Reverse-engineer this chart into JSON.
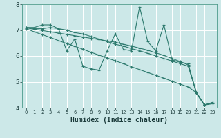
{
  "xlabel": "Humidex (Indice chaleur)",
  "bg_color": "#cce8e8",
  "grid_color": "#ffffff",
  "line_color": "#2d7a6e",
  "xlim": [
    -0.5,
    23.5
  ],
  "ylim": [
    4,
    8
  ],
  "xticks": [
    0,
    1,
    2,
    3,
    4,
    5,
    6,
    7,
    8,
    9,
    10,
    11,
    12,
    13,
    14,
    15,
    16,
    17,
    18,
    19,
    20,
    21,
    22,
    23
  ],
  "yticks": [
    4,
    5,
    6,
    7,
    8
  ],
  "series": [
    [
      7.1,
      7.1,
      7.2,
      7.2,
      7.05,
      6.2,
      6.65,
      5.6,
      5.5,
      5.45,
      6.2,
      6.85,
      6.25,
      6.2,
      7.9,
      6.55,
      6.2,
      7.2,
      5.85,
      5.75,
      5.7,
      4.55,
      4.1,
      4.2
    ],
    [
      7.1,
      7.05,
      7.05,
      7.1,
      7.05,
      7.0,
      6.9,
      6.85,
      6.75,
      6.65,
      6.55,
      6.45,
      6.38,
      6.28,
      6.2,
      6.1,
      6.0,
      5.9,
      5.8,
      5.7,
      5.6,
      4.58,
      4.1,
      4.2
    ],
    [
      7.08,
      7.03,
      6.98,
      6.93,
      6.88,
      6.83,
      6.78,
      6.73,
      6.68,
      6.63,
      6.58,
      6.53,
      6.45,
      6.38,
      6.3,
      6.22,
      6.12,
      6.02,
      5.9,
      5.78,
      5.65,
      4.6,
      4.1,
      4.18
    ],
    [
      7.05,
      6.93,
      6.82,
      6.71,
      6.59,
      6.48,
      6.37,
      6.26,
      6.14,
      6.03,
      5.92,
      5.81,
      5.7,
      5.58,
      5.47,
      5.36,
      5.25,
      5.14,
      5.02,
      4.91,
      4.8,
      4.58,
      4.1,
      4.15
    ]
  ]
}
